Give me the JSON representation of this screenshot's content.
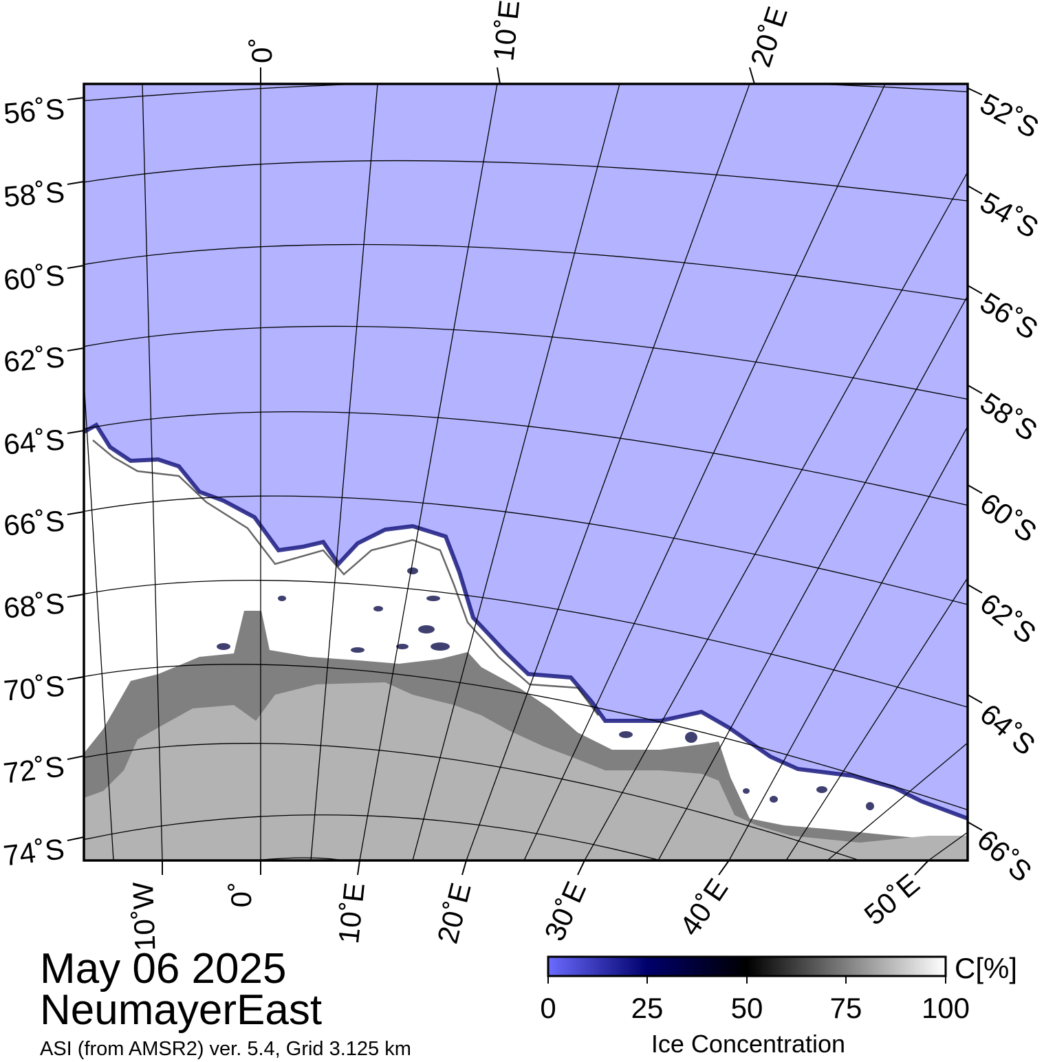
{
  "map": {
    "date": "May 06 2025",
    "region": "NeumayerEast",
    "product": "ASI (from AMSR2) ver. 5.4,  Grid 3.125 km",
    "colors": {
      "open_water": "#b3b3ff",
      "land_ice_shelf": "#808080",
      "land": "#b3b3b3",
      "sea_ice": "#ffffff"
    },
    "top_labels": [
      "0˚",
      "10˚E",
      "20˚E"
    ],
    "bottom_labels": [
      "10˚W",
      "0˚",
      "10˚E",
      "20˚E",
      "30˚E",
      "40˚E",
      "50˚E"
    ],
    "left_labels": [
      "56˚S",
      "58˚S",
      "60˚S",
      "62˚S",
      "64˚S",
      "66˚S",
      "68˚S",
      "70˚S",
      "72˚S",
      "74˚S"
    ],
    "right_labels": [
      "52˚S",
      "54˚S",
      "56˚S",
      "58˚S",
      "60˚S",
      "62˚S",
      "64˚S",
      "66˚S"
    ]
  },
  "colorbar": {
    "unit": "C[%]",
    "label": "Ice Concentration",
    "ticks": [
      "0",
      "25",
      "50",
      "75",
      "100"
    ],
    "colors": [
      "#6b6bff",
      "#00006b",
      "#000000",
      "#ffffff"
    ]
  }
}
